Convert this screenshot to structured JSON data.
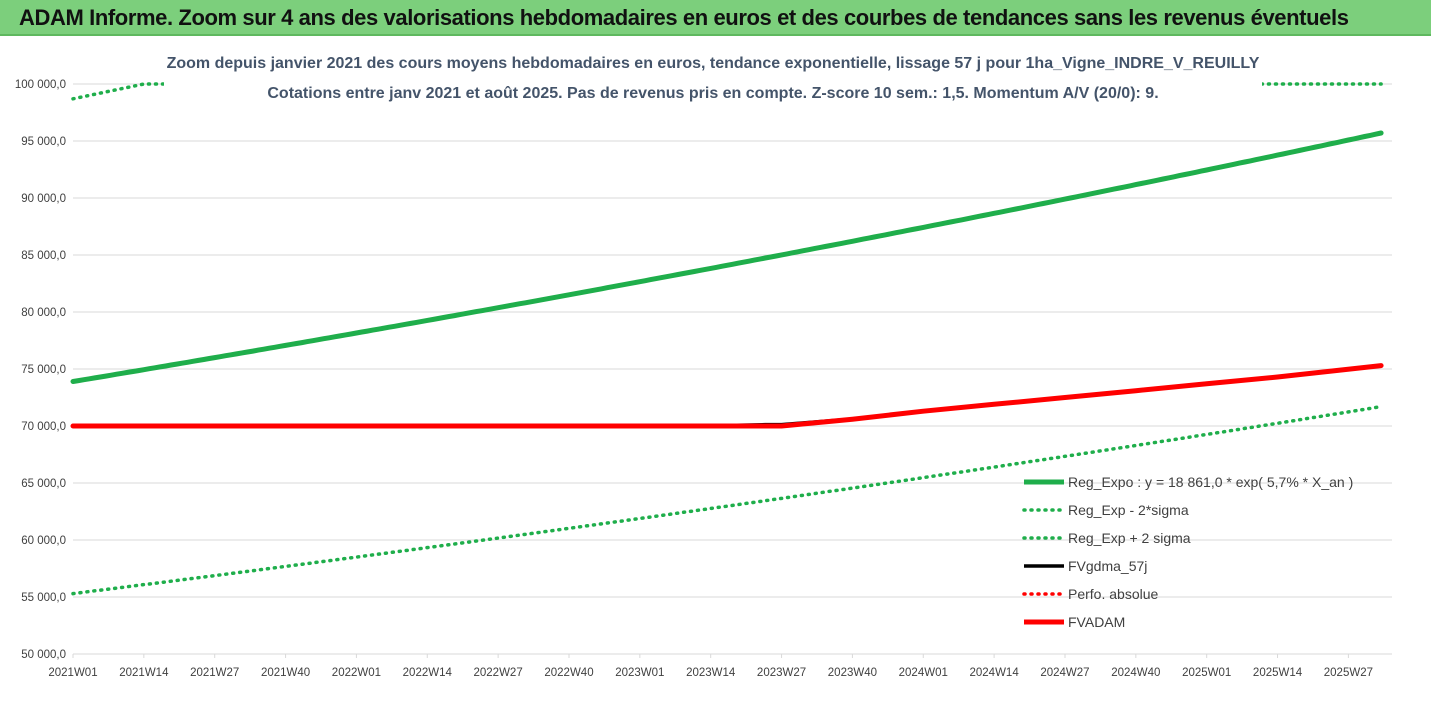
{
  "banner": {
    "title": "ADAM Informe. Zoom sur 4 ans des valorisations hebdomadaires en euros et des courbes de tendances sans les revenus éventuels"
  },
  "colors": {
    "banner_bg": "#7ccf7c",
    "green": "#1fae4b",
    "red": "#ff0000",
    "black": "#000000",
    "gridline": "#d9d9d9",
    "title_text": "#44546a"
  },
  "chart_data": {
    "type": "line",
    "title_lines": [
      "Zoom depuis janvier 2021 des cours moyens hebdomadaires en euros, tendance exponentielle, lissage 57 j pour 1ha_Vigne_INDRE_V_REUILLY",
      "Cotations entre janv 2021 et août 2025.  Pas de revenus pris en compte. Z-score 10 sem.: 1,5. Momentum A/V (20/0): 9."
    ],
    "xlabel": "",
    "ylabel": "",
    "ylim": [
      50000,
      100000
    ],
    "y_ticks": [
      50000,
      55000,
      60000,
      65000,
      70000,
      75000,
      80000,
      85000,
      90000,
      95000,
      100000
    ],
    "y_tick_labels": [
      "50 000,0",
      "55 000,0",
      "60 000,0",
      "65 000,0",
      "70 000,0",
      "75 000,0",
      "80 000,0",
      "85 000,0",
      "90 000,0",
      "95 000,0",
      "100 000,0"
    ],
    "x_tick_labels": [
      "2021W01",
      "2021W14",
      "2021W27",
      "2021W40",
      "2022W01",
      "2022W14",
      "2022W27",
      "2022W40",
      "2023W01",
      "2023W14",
      "2023W27",
      "2023W40",
      "2024W01",
      "2024W14",
      "2024W27",
      "2024W40",
      "2025W01",
      "2025W14",
      "2025W27"
    ],
    "x_last_week_index": 242,
    "grid": "horizontal",
    "legend_position": "bottom-right",
    "series": [
      {
        "name": "Reg_Expo : y = 18 861,0 * exp( 5,7% *  X_an )",
        "style": "solid",
        "color": "#1fae4b",
        "x": [
          "2021W01",
          "2025W33"
        ],
        "y": [
          73900,
          95700
        ],
        "growth": "exponential"
      },
      {
        "name": "Reg_Exp - 2*sigma",
        "style": "dotted",
        "color": "#1fae4b",
        "x": [
          "2021W01",
          "2025W33"
        ],
        "y": [
          55300,
          71700
        ],
        "growth": "exponential"
      },
      {
        "name": "Reg_Exp + 2 sigma",
        "style": "dotted",
        "color": "#1fae4b",
        "x": [
          "2021W01",
          "2021W14",
          "2025W33"
        ],
        "y": [
          98700,
          100000,
          100000
        ],
        "clipped_at": 100000
      },
      {
        "name": "FVgdma_57j",
        "style": "solid",
        "color": "#000000",
        "x": [
          "2021W01",
          "2023W14",
          "2023W24",
          "2023W27",
          "2023W40",
          "2024W01",
          "2024W14",
          "2024W27",
          "2024W40",
          "2025W01",
          "2025W14",
          "2025W33"
        ],
        "y": [
          70000,
          70000,
          70100,
          70100,
          70600,
          71300,
          71900,
          72500,
          73100,
          73700,
          74300,
          75300
        ]
      },
      {
        "name": "Perfo. absolue",
        "style": "dotted",
        "color": "#ff0000",
        "x": [],
        "y": []
      },
      {
        "name": "FVADAM",
        "style": "solid",
        "color": "#ff0000",
        "x": [
          "2021W01",
          "2023W14",
          "2023W27",
          "2023W40",
          "2024W01",
          "2024W14",
          "2024W27",
          "2024W40",
          "2025W01",
          "2025W14",
          "2025W33"
        ],
        "y": [
          70000,
          70000,
          70000,
          70600,
          71300,
          71900,
          72500,
          73100,
          73700,
          74300,
          75300
        ]
      }
    ]
  }
}
